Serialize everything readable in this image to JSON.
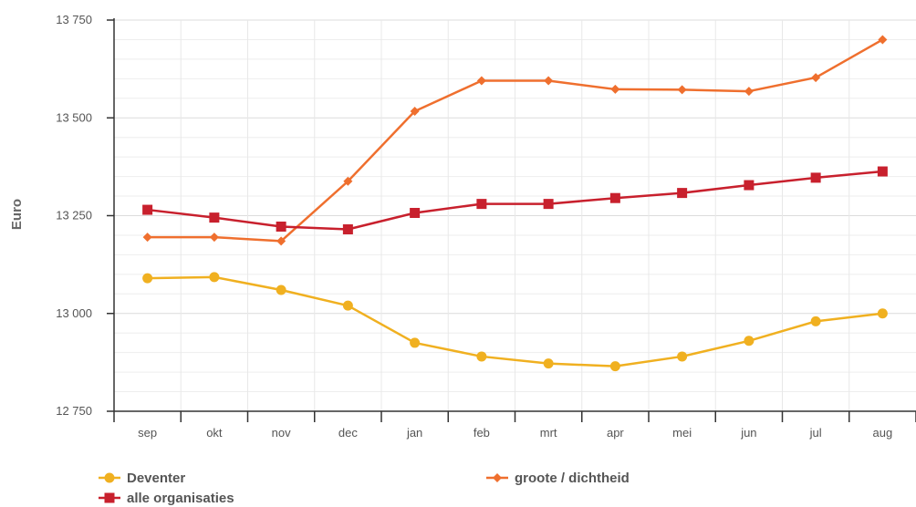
{
  "chart_data": {
    "type": "line",
    "title": "",
    "xlabel": "",
    "ylabel": "Euro",
    "categories": [
      "sep",
      "okt",
      "nov",
      "dec",
      "jan",
      "feb",
      "mrt",
      "apr",
      "mei",
      "jun",
      "jul",
      "aug"
    ],
    "ylim": [
      12750,
      13750
    ],
    "yticks": [
      12750,
      13000,
      13250,
      13500,
      13750
    ],
    "ytick_labels": [
      "12 750",
      "13 000",
      "13 250",
      "13 500",
      "13 750"
    ],
    "grid": true,
    "legend_position": "bottom",
    "series": [
      {
        "name": "Deventer",
        "color": "#f0b020",
        "marker": "circle",
        "values": [
          13090,
          13093,
          13060,
          13020,
          12925,
          12890,
          12872,
          12865,
          12890,
          12930,
          12980,
          13000
        ]
      },
      {
        "name": "groote / dichtheid",
        "color": "#ef6f2e",
        "marker": "diamond",
        "values": [
          13195,
          13195,
          13185,
          13338,
          13517,
          13595,
          13595,
          13573,
          13572,
          13568,
          13603,
          13700
        ]
      },
      {
        "name": "alle organisaties",
        "color": "#c8202d",
        "marker": "square",
        "values": [
          13265,
          13245,
          13222,
          13215,
          13257,
          13280,
          13280,
          13295,
          13308,
          13328,
          13347,
          13363
        ]
      }
    ]
  }
}
